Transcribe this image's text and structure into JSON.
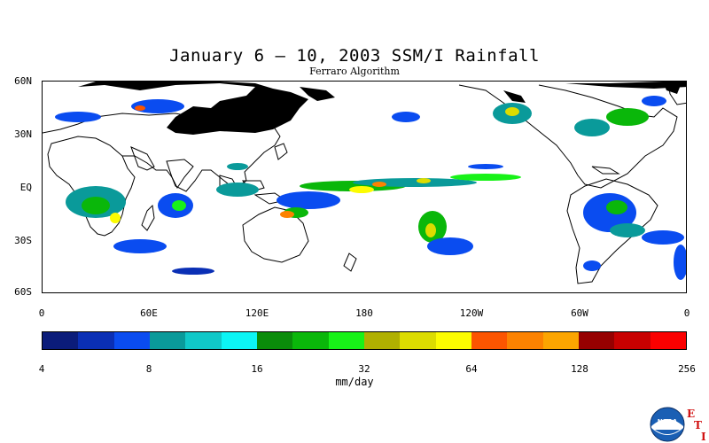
{
  "title": "January 6 – 10, 2003 SSM/I Rainfall",
  "subtitle": "Ferraro Algorithm",
  "axes": {
    "lat_labels": [
      "60N",
      "30N",
      "EQ",
      "30S",
      "60S"
    ],
    "lon_labels": [
      "0",
      "60E",
      "120E",
      "180",
      "120W",
      "60W",
      "0"
    ]
  },
  "colorbar": {
    "colors": [
      "#0b1c7a",
      "#0a2fb5",
      "#0a4cf0",
      "#0a9a9a",
      "#10c8c8",
      "#0cf5f5",
      "#0a8c0a",
      "#0ab70a",
      "#18f218",
      "#b0b000",
      "#dcdc00",
      "#fcfc00",
      "#fc5500",
      "#fc8200",
      "#fca500",
      "#960000",
      "#c80000",
      "#fa0000"
    ],
    "tick_labels": [
      "4",
      "8",
      "16",
      "32",
      "64",
      "128",
      "256"
    ],
    "units": "mm/day",
    "scale": "log2"
  },
  "colors": {
    "land_outline": "#000000",
    "missing_ice": "#000000",
    "background": "#ffffff"
  },
  "logo": {
    "name": "NOAA",
    "mark": [
      "E",
      "T",
      "I"
    ]
  }
}
